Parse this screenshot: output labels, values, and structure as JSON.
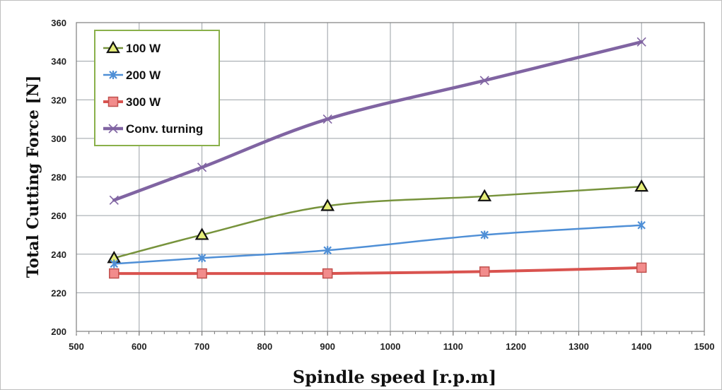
{
  "chart_data": {
    "type": "line",
    "title": "",
    "xlabel": "Spindle speed [r.p.m]",
    "ylabel": "Total Cutting Force [N]",
    "xlim": [
      500,
      1500
    ],
    "ylim": [
      200,
      360
    ],
    "xticks": [
      500,
      600,
      700,
      800,
      900,
      1000,
      1100,
      1200,
      1300,
      1400,
      1500
    ],
    "yticks": [
      200,
      220,
      240,
      260,
      280,
      300,
      320,
      340,
      360
    ],
    "grid": true,
    "legend_position": "top-left",
    "x": [
      560,
      700,
      900,
      1150,
      1400
    ],
    "series": [
      {
        "name": "100 W",
        "values": [
          238,
          250,
          265,
          270,
          275
        ],
        "color": "#77933c",
        "marker": "triangle"
      },
      {
        "name": "200 W",
        "values": [
          235,
          238,
          242,
          250,
          255
        ],
        "color": "#4f8fd6",
        "marker": "star"
      },
      {
        "name": "300 W",
        "values": [
          230,
          230,
          230,
          231,
          233
        ],
        "color": "#d9534f",
        "marker": "square"
      },
      {
        "name": "Conv. turning",
        "values": [
          268,
          285,
          310,
          330,
          350
        ],
        "color": "#8064a2",
        "marker": "x"
      }
    ]
  }
}
